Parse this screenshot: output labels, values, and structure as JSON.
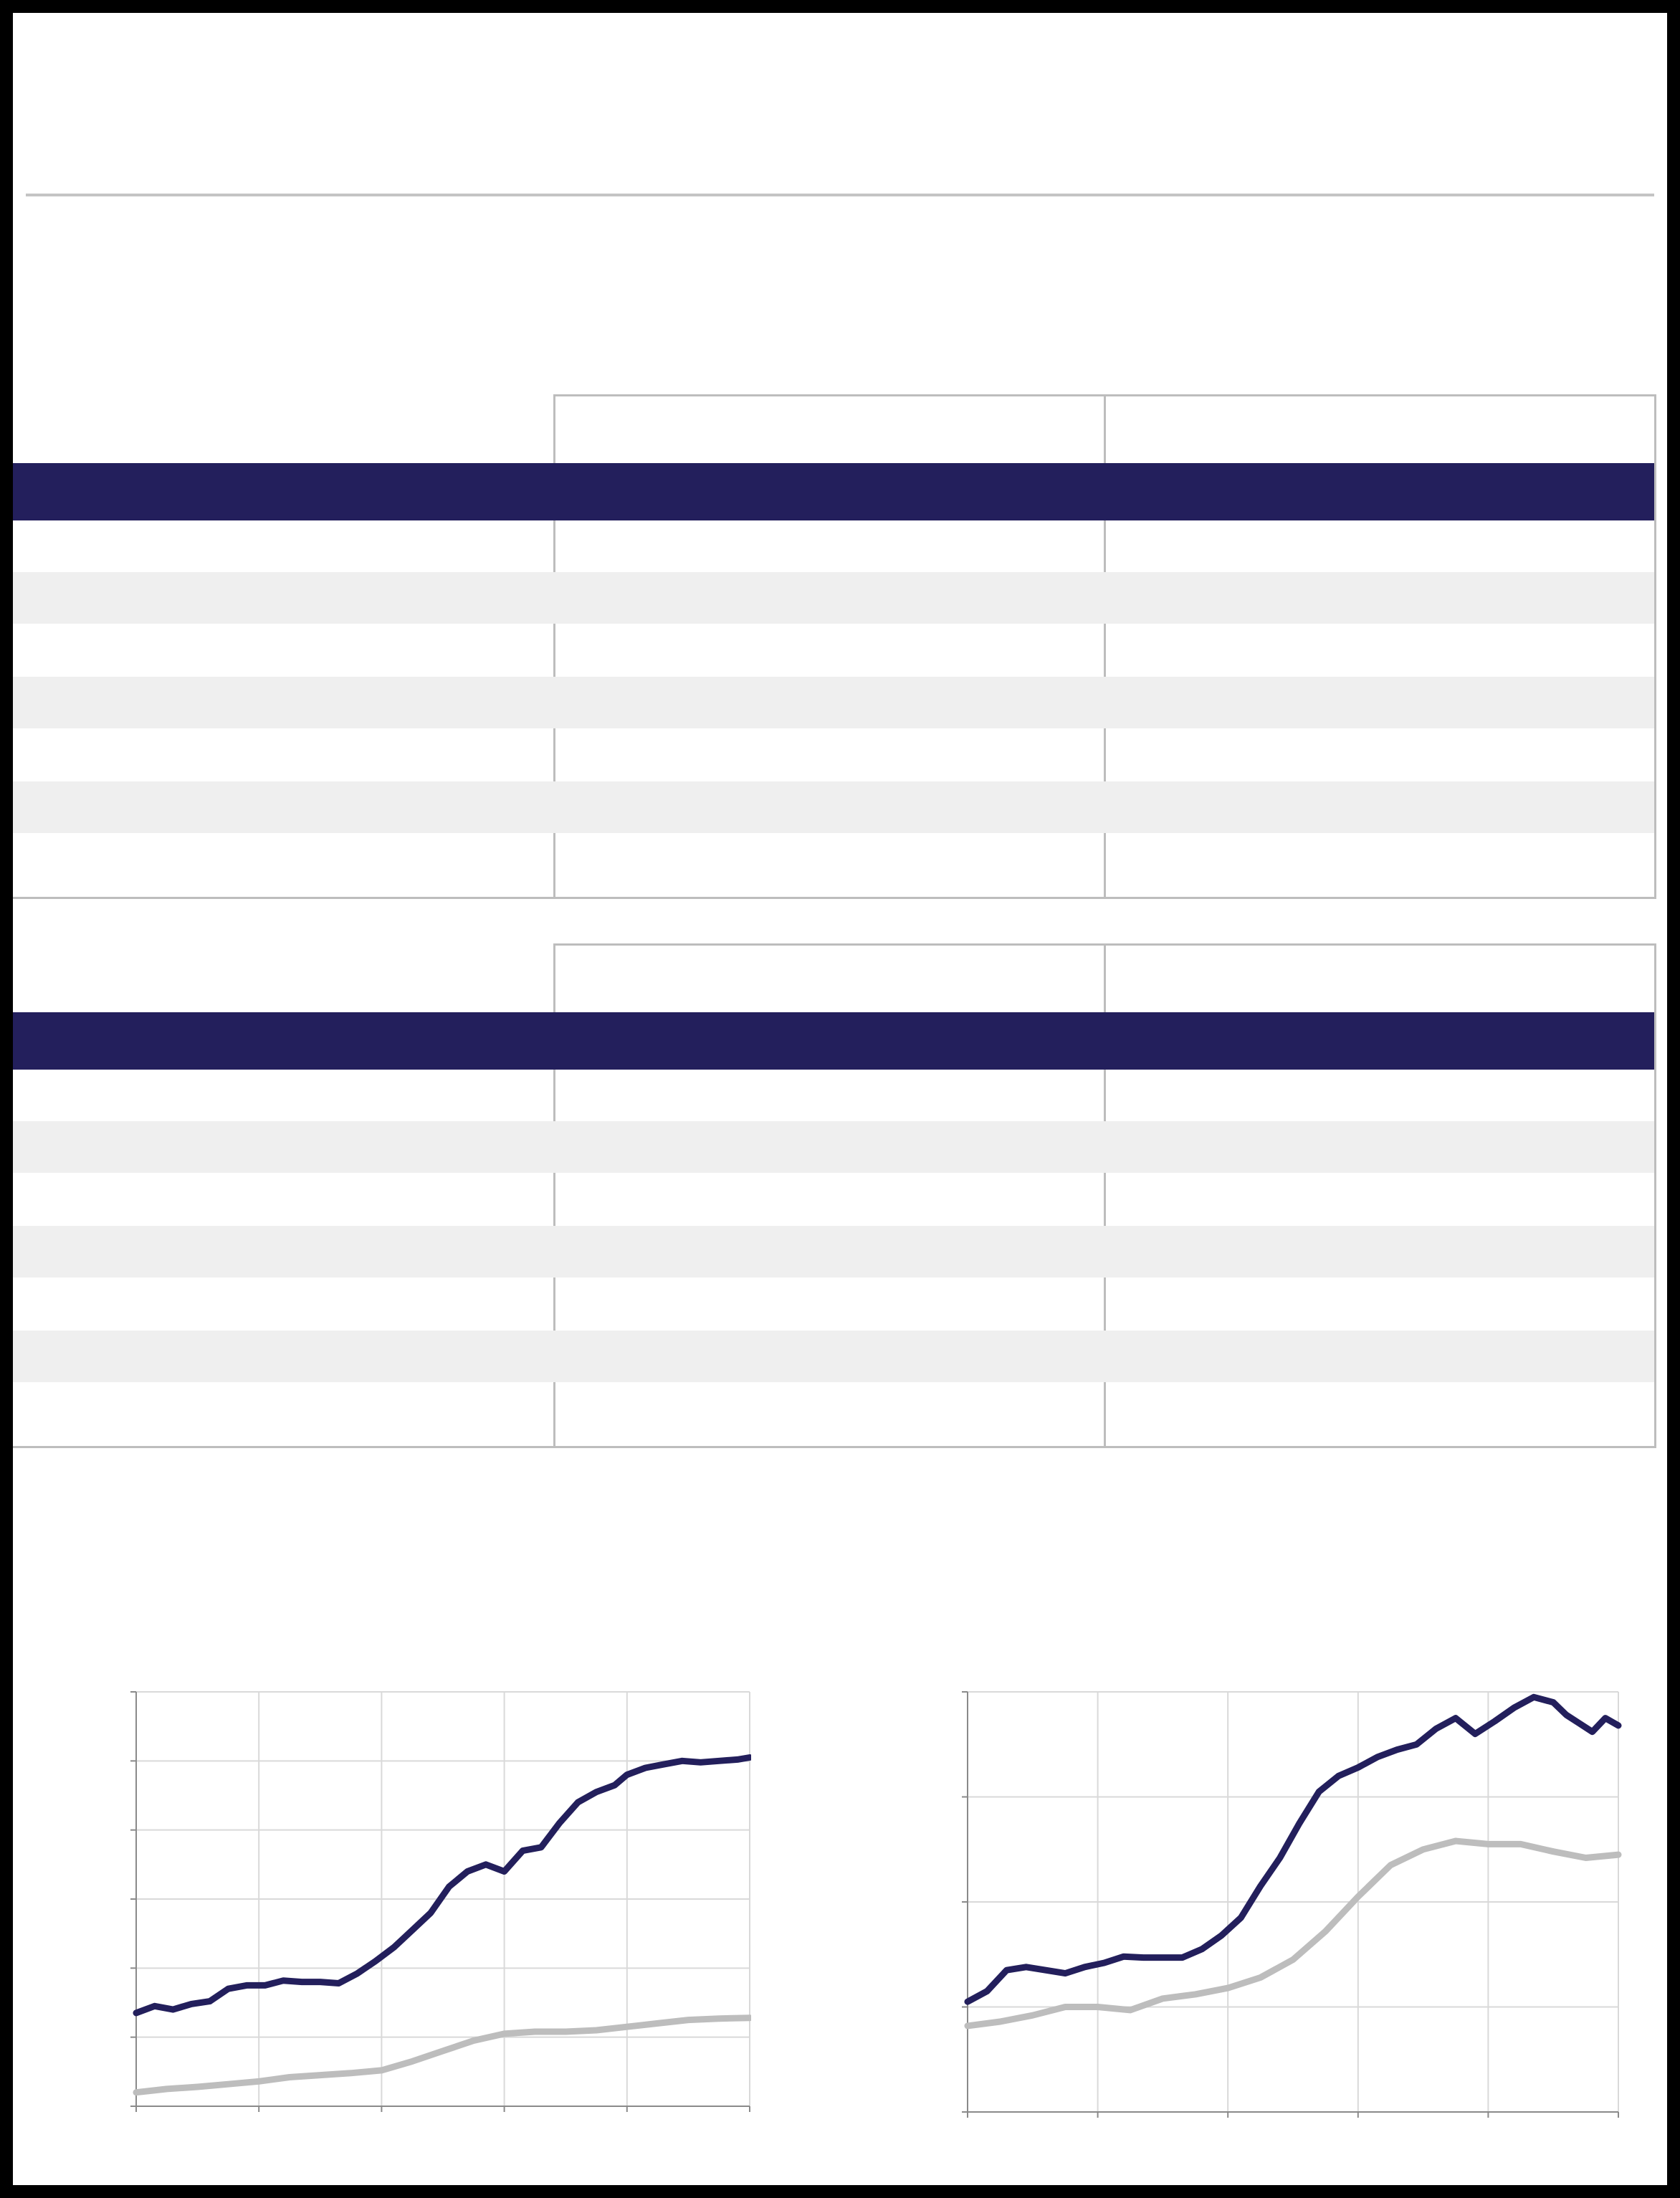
{
  "colors": {
    "header_band": "#231f5c",
    "row_stripe": "#efefef",
    "border": "#bdbdbd",
    "series_primary": "#231f5c",
    "series_secondary": "#bdbdbd"
  },
  "tables": [
    {
      "columns": [
        "",
        "",
        ""
      ],
      "rows": [
        [
          "",
          "",
          ""
        ],
        [
          "",
          "",
          ""
        ],
        [
          "",
          "",
          ""
        ],
        [
          "",
          "",
          ""
        ],
        [
          "",
          "",
          ""
        ],
        [
          "",
          "",
          ""
        ],
        [
          "",
          "",
          ""
        ]
      ]
    },
    {
      "columns": [
        "",
        "",
        ""
      ],
      "rows": [
        [
          "",
          "",
          ""
        ],
        [
          "",
          "",
          ""
        ],
        [
          "",
          "",
          ""
        ],
        [
          "",
          "",
          ""
        ],
        [
          "",
          "",
          ""
        ],
        [
          "",
          "",
          ""
        ],
        [
          "",
          "",
          ""
        ]
      ]
    }
  ],
  "chart_data": [
    {
      "type": "line",
      "title": "",
      "xlabel": "",
      "ylabel": "",
      "grid": true,
      "xlim": [
        0,
        100
      ],
      "ylim": [
        0,
        6
      ],
      "x_tick_count": 6,
      "y_tick_count": 7,
      "series": [
        {
          "color": "#231f5c",
          "x": [
            0,
            3,
            6,
            9,
            12,
            15,
            18,
            21,
            24,
            27,
            30,
            33,
            36,
            39,
            42,
            45,
            48,
            51,
            54,
            57,
            60,
            63,
            66,
            69,
            72,
            75,
            78,
            80,
            83,
            86,
            89,
            92,
            95,
            98,
            100
          ],
          "values": [
            1.35,
            1.45,
            1.4,
            1.48,
            1.52,
            1.7,
            1.75,
            1.75,
            1.82,
            1.8,
            1.8,
            1.78,
            1.92,
            2.1,
            2.3,
            2.55,
            2.8,
            3.18,
            3.4,
            3.5,
            3.4,
            3.7,
            3.75,
            4.1,
            4.4,
            4.55,
            4.65,
            4.8,
            4.9,
            4.95,
            5.0,
            4.98,
            5.0,
            5.02,
            5.05
          ]
        },
        {
          "color": "#bdbdbd",
          "x": [
            0,
            5,
            10,
            15,
            20,
            25,
            30,
            35,
            40,
            45,
            50,
            55,
            60,
            65,
            70,
            75,
            80,
            85,
            90,
            95,
            100
          ],
          "values": [
            0.2,
            0.25,
            0.28,
            0.32,
            0.36,
            0.42,
            0.45,
            0.48,
            0.52,
            0.65,
            0.8,
            0.95,
            1.05,
            1.08,
            1.08,
            1.1,
            1.15,
            1.2,
            1.25,
            1.27,
            1.28
          ]
        }
      ]
    },
    {
      "type": "line",
      "title": "",
      "xlabel": "",
      "ylabel": "",
      "grid": true,
      "xlim": [
        0,
        100
      ],
      "ylim": [
        0,
        4
      ],
      "x_tick_count": 6,
      "y_tick_count": 5,
      "series": [
        {
          "color": "#231f5c",
          "x": [
            0,
            3,
            6,
            9,
            12,
            15,
            18,
            21,
            24,
            27,
            30,
            33,
            36,
            39,
            42,
            45,
            48,
            51,
            54,
            57,
            60,
            63,
            66,
            69,
            72,
            75,
            78,
            81,
            84,
            87,
            90,
            92,
            94,
            96,
            98,
            100
          ],
          "values": [
            1.05,
            1.15,
            1.35,
            1.38,
            1.35,
            1.32,
            1.38,
            1.42,
            1.48,
            1.47,
            1.47,
            1.47,
            1.55,
            1.68,
            1.85,
            2.15,
            2.42,
            2.75,
            3.05,
            3.2,
            3.28,
            3.38,
            3.45,
            3.5,
            3.65,
            3.75,
            3.6,
            3.72,
            3.85,
            3.95,
            3.9,
            3.78,
            3.7,
            3.62,
            3.75,
            3.68
          ]
        },
        {
          "color": "#bdbdbd",
          "x": [
            0,
            5,
            10,
            15,
            20,
            25,
            30,
            35,
            40,
            45,
            50,
            55,
            60,
            65,
            70,
            75,
            80,
            85,
            90,
            95,
            100
          ],
          "values": [
            0.82,
            0.86,
            0.92,
            1.0,
            1.0,
            0.97,
            1.08,
            1.12,
            1.18,
            1.28,
            1.45,
            1.72,
            2.05,
            2.35,
            2.5,
            2.58,
            2.55,
            2.55,
            2.48,
            2.42,
            2.45
          ]
        }
      ]
    }
  ]
}
